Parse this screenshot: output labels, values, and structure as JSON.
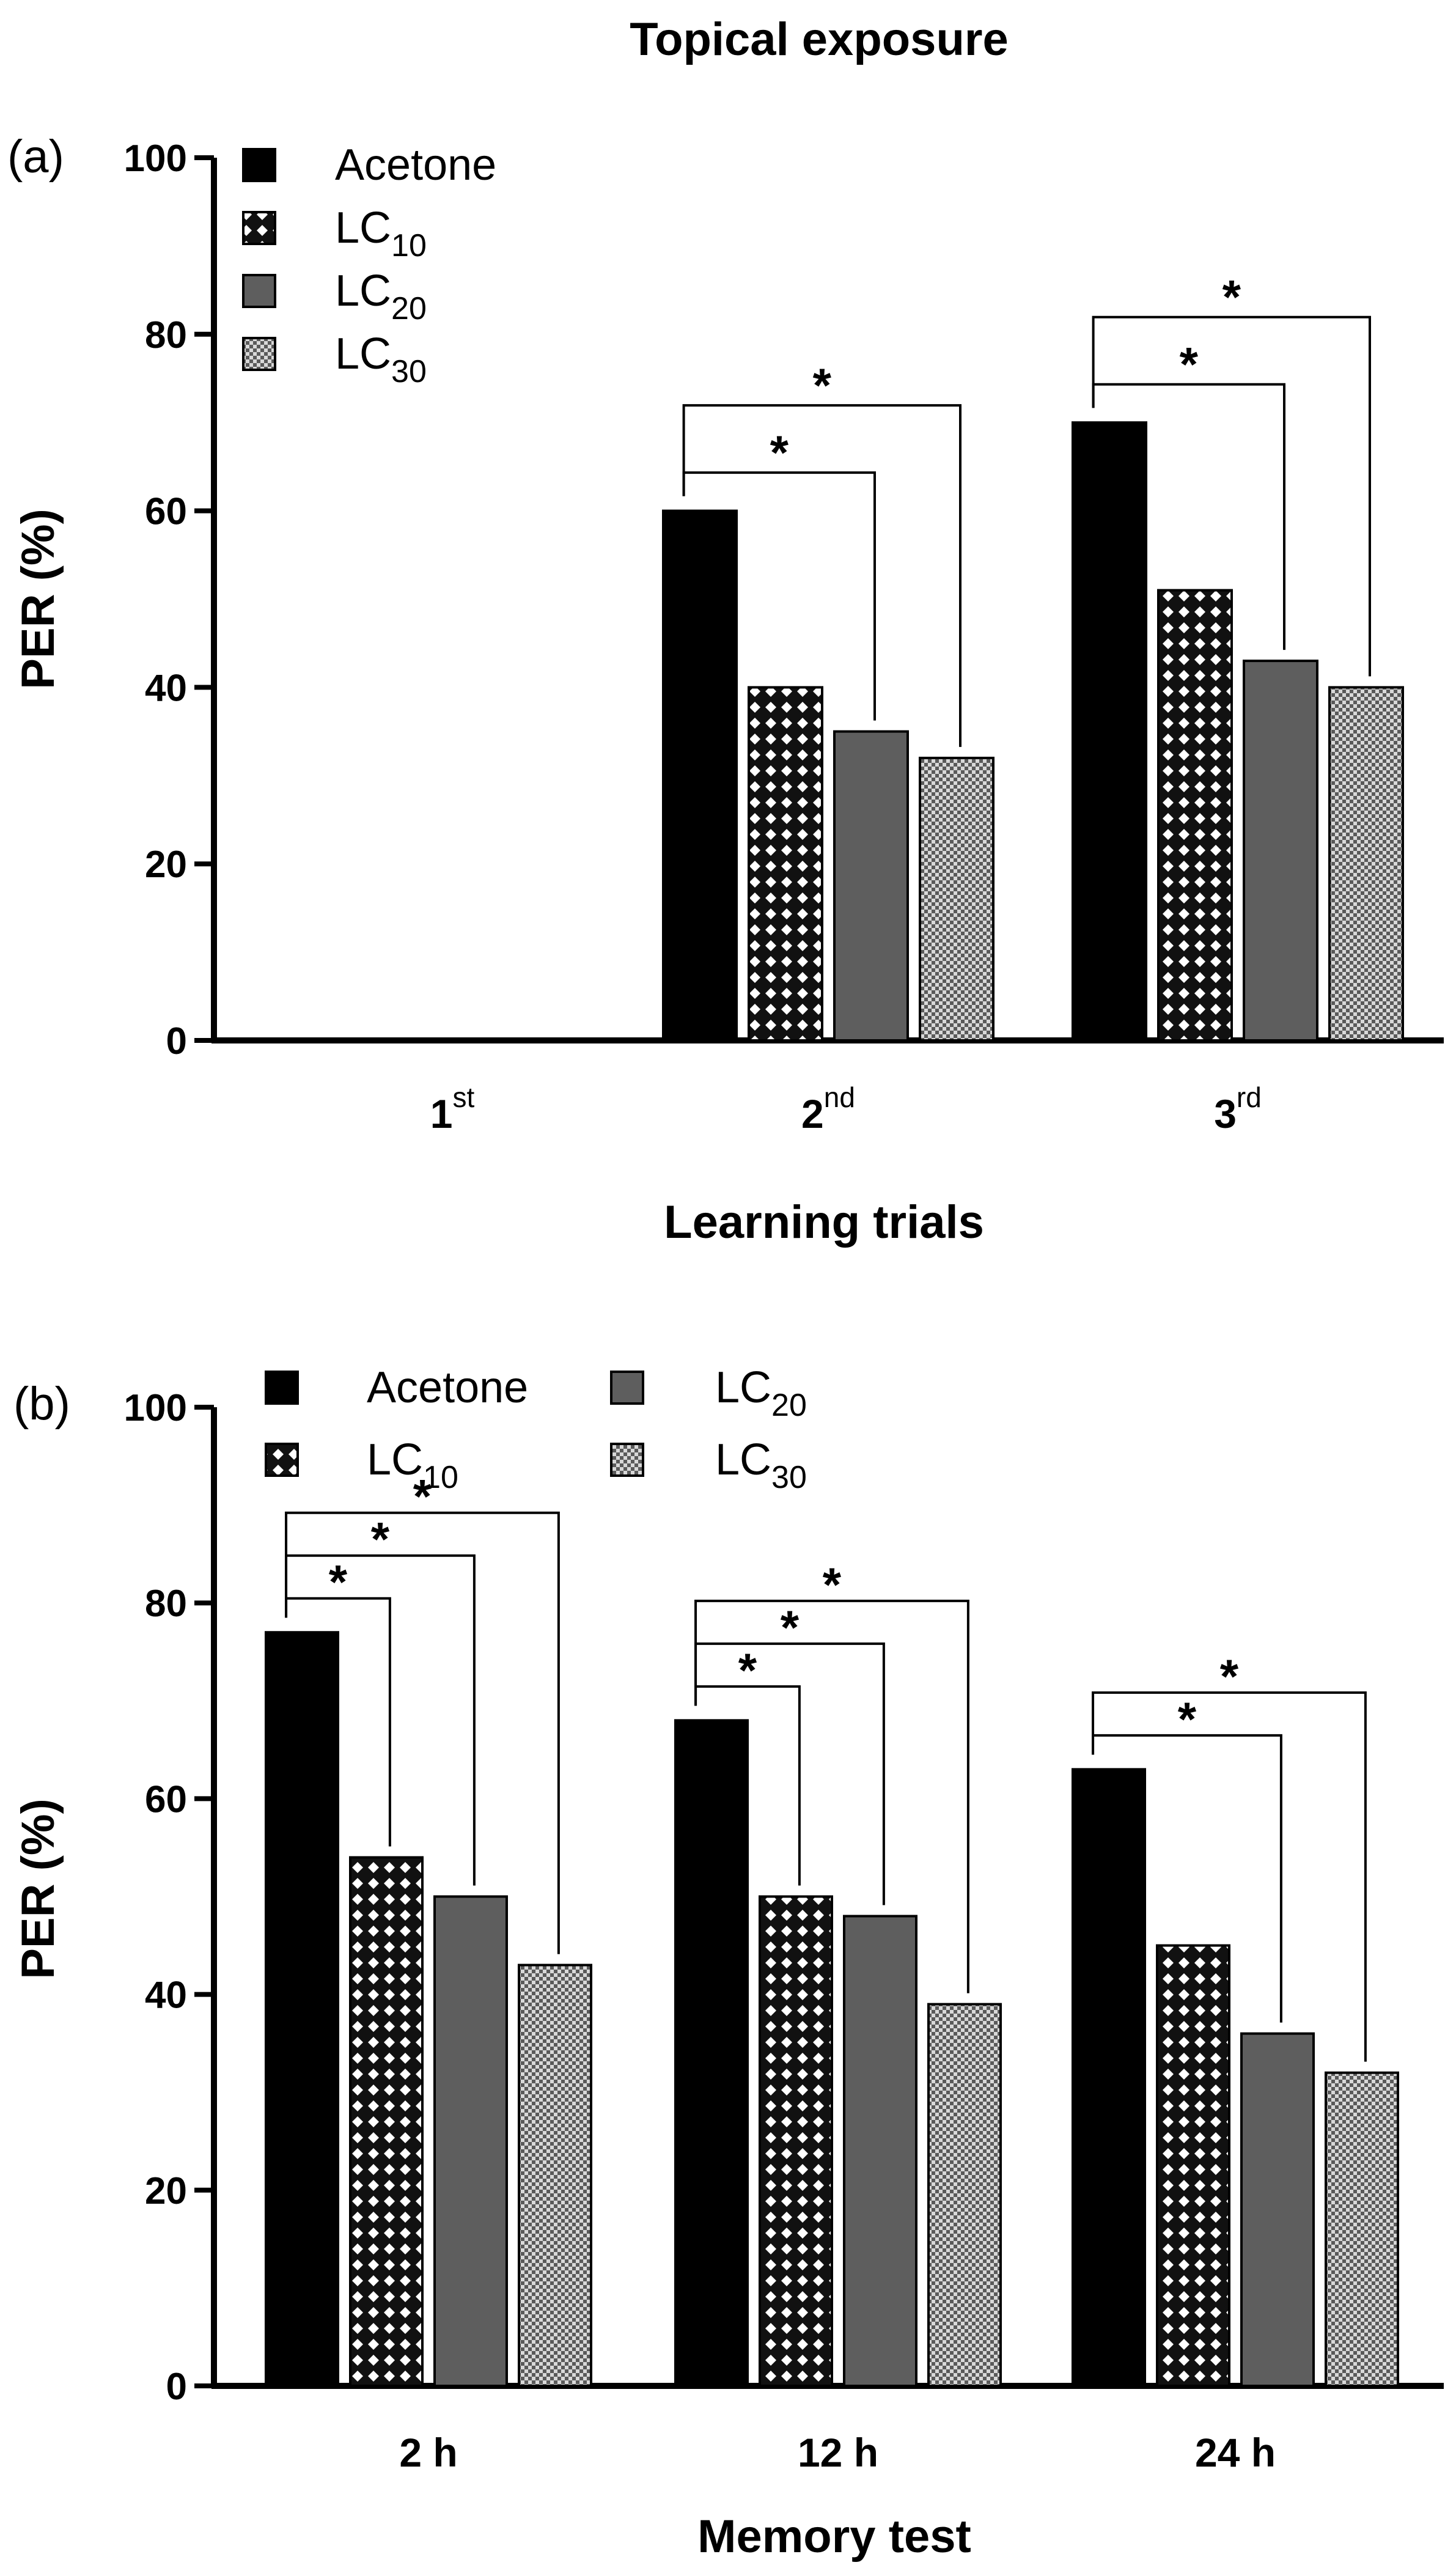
{
  "figure_title": "Topical exposure",
  "chart_data": [
    {
      "panel_label": "(a)",
      "type": "bar",
      "title": "",
      "xlabel": "Learning trials",
      "ylabel": "PER (%)",
      "ylim": [
        0,
        100
      ],
      "yticks": [
        "0",
        "20",
        "40",
        "60",
        "80",
        "100"
      ],
      "categories": [
        {
          "base": "1",
          "sup": "st"
        },
        {
          "base": "2",
          "sup": "nd"
        },
        {
          "base": "3",
          "sup": "rd"
        }
      ],
      "series": [
        {
          "name": "Acetone",
          "sub": "",
          "pattern": "solid-black",
          "values": [
            0,
            60,
            70
          ]
        },
        {
          "name": "LC",
          "sub": "10",
          "pattern": "crosshatch",
          "values": [
            0,
            40,
            51
          ]
        },
        {
          "name": "LC",
          "sub": "20",
          "pattern": "solid-grey",
          "values": [
            0,
            35,
            43
          ]
        },
        {
          "name": "LC",
          "sub": "30",
          "pattern": "checker",
          "values": [
            0,
            32,
            40
          ]
        }
      ],
      "significance": [
        {
          "category": 1,
          "from": 0,
          "to": 2,
          "label": "*"
        },
        {
          "category": 1,
          "from": 0,
          "to": 3,
          "label": "*"
        },
        {
          "category": 2,
          "from": 0,
          "to": 2,
          "label": "*"
        },
        {
          "category": 2,
          "from": 0,
          "to": 3,
          "label": "*"
        }
      ],
      "legend_layout": "single-column-top-left"
    },
    {
      "panel_label": "(b)",
      "type": "bar",
      "title": "",
      "xlabel": "Memory test",
      "ylabel": "PER (%)",
      "ylim": [
        0,
        100
      ],
      "yticks": [
        "0",
        "20",
        "40",
        "60",
        "80",
        "100"
      ],
      "categories": [
        {
          "base": "2 h",
          "sup": ""
        },
        {
          "base": "12 h",
          "sup": ""
        },
        {
          "base": "24 h",
          "sup": ""
        }
      ],
      "series": [
        {
          "name": "Acetone",
          "sub": "",
          "pattern": "solid-black",
          "values": [
            77,
            68,
            63
          ]
        },
        {
          "name": "LC",
          "sub": "10",
          "pattern": "crosshatch",
          "values": [
            54,
            50,
            45
          ]
        },
        {
          "name": "LC",
          "sub": "20",
          "pattern": "solid-grey",
          "values": [
            50,
            48,
            36
          ]
        },
        {
          "name": "LC",
          "sub": "30",
          "pattern": "checker",
          "values": [
            43,
            39,
            32
          ]
        }
      ],
      "significance": [
        {
          "category": 0,
          "from": 0,
          "to": 1,
          "label": "*"
        },
        {
          "category": 0,
          "from": 0,
          "to": 2,
          "label": "*"
        },
        {
          "category": 0,
          "from": 0,
          "to": 3,
          "label": "*"
        },
        {
          "category": 1,
          "from": 0,
          "to": 1,
          "label": "*"
        },
        {
          "category": 1,
          "from": 0,
          "to": 2,
          "label": "*"
        },
        {
          "category": 1,
          "from": 0,
          "to": 3,
          "label": "*"
        },
        {
          "category": 2,
          "from": 0,
          "to": 2,
          "label": "*"
        },
        {
          "category": 2,
          "from": 0,
          "to": 3,
          "label": "*"
        }
      ],
      "legend_layout": "two-column-top-left"
    }
  ]
}
